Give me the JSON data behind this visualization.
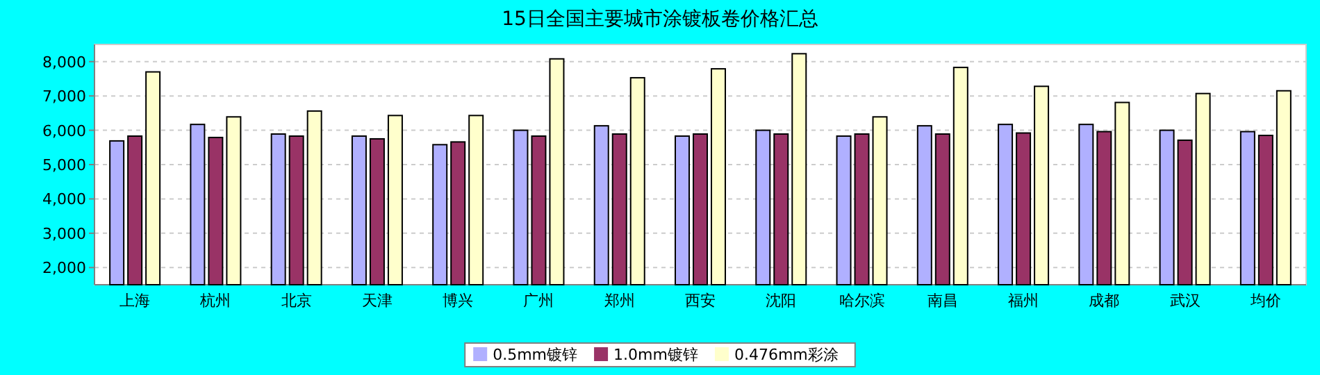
{
  "chart_data": {
    "type": "bar",
    "title": "15日全国主要城市涂镀板卷价格汇总",
    "categories": [
      "上海",
      "杭州",
      "北京",
      "天津",
      "博兴",
      "广州",
      "郑州",
      "西安",
      "沈阳",
      "哈尔滨",
      "南昌",
      "福州",
      "成都",
      "武汉",
      "均价"
    ],
    "series": [
      {
        "name": "0.5mm镀锌",
        "color": "#b0b0ff",
        "values": [
          5690,
          6170,
          5890,
          5830,
          5580,
          6000,
          6130,
          5830,
          6000,
          5830,
          6130,
          6170,
          6170,
          6000,
          5960
        ]
      },
      {
        "name": "1.0mm镀锌",
        "color": "#993366",
        "values": [
          5830,
          5790,
          5830,
          5750,
          5660,
          5830,
          5890,
          5890,
          5890,
          5890,
          5890,
          5920,
          5960,
          5710,
          5850
        ]
      },
      {
        "name": "0.476mm彩涂",
        "color": "#ffffcc",
        "values": [
          7700,
          6390,
          6560,
          6430,
          6430,
          8080,
          7530,
          7790,
          8230,
          6390,
          7830,
          7280,
          6810,
          7070,
          7150
        ]
      }
    ],
    "ylim": [
      1500,
      8500
    ],
    "yticks": [
      {
        "value": 2000,
        "label": "2,000"
      },
      {
        "value": 3000,
        "label": "3,000"
      },
      {
        "value": 4000,
        "label": "4,000"
      },
      {
        "value": 5000,
        "label": "5,000"
      },
      {
        "value": 6000,
        "label": "6,000"
      },
      {
        "value": 7000,
        "label": "7,000"
      },
      {
        "value": 8000,
        "label": "8,000"
      }
    ],
    "grid": "y",
    "legend": "bottom"
  }
}
